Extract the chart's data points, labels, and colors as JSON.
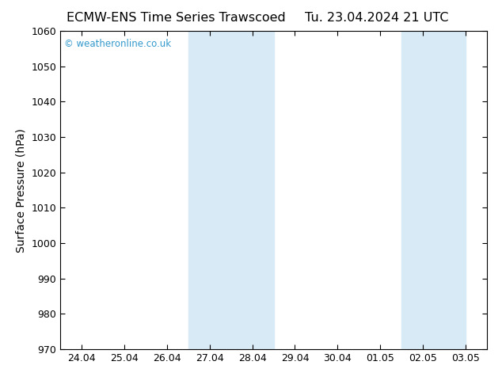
{
  "title_left": "ECMW-ENS Time Series Trawscoed",
  "title_right": "Tu. 23.04.2024 21 UTC",
  "ylabel": "Surface Pressure (hPa)",
  "ylim": [
    970,
    1060
  ],
  "yticks": [
    970,
    980,
    990,
    1000,
    1010,
    1020,
    1030,
    1040,
    1050,
    1060
  ],
  "xtick_labels": [
    "24.04",
    "25.04",
    "26.04",
    "27.04",
    "28.04",
    "29.04",
    "30.04",
    "01.05",
    "02.05",
    "03.05"
  ],
  "xtick_positions": [
    0,
    1,
    2,
    3,
    4,
    5,
    6,
    7,
    8,
    9
  ],
  "xlim": [
    -0.5,
    9.5
  ],
  "shaded_regions": [
    {
      "x_start": 2.5,
      "x_end": 4.5
    },
    {
      "x_start": 7.5,
      "x_end": 9.0
    }
  ],
  "shaded_color": "#d8eaf5",
  "background_color": "#ffffff",
  "watermark_text": "© weatheronline.co.uk",
  "watermark_color": "#3399cc",
  "title_fontsize": 11.5,
  "axis_label_fontsize": 10,
  "tick_fontsize": 9
}
